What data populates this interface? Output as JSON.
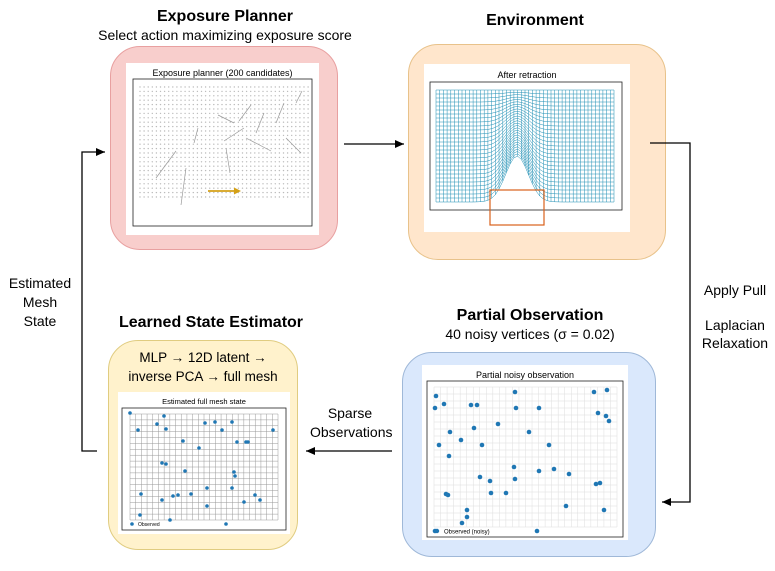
{
  "planner": {
    "title": "Exposure Planner",
    "subtitle": "Select action maximizing exposure score",
    "plot_title": "Exposure planner (200 candidates)"
  },
  "environment": {
    "title": "Environment",
    "plot_title": "After retraction"
  },
  "observation": {
    "title": "Partial Observation",
    "subtitle": "40 noisy vertices (σ = 0.02)",
    "plot_title": "Partial noisy observation",
    "legend": "Observed (noisy)"
  },
  "estimator": {
    "title": "Learned State Estimator",
    "line1": "MLP → 12D latent →",
    "line2": "inverse PCA → full mesh",
    "plot_title": "Estimated full mesh state",
    "legend": "Observed"
  },
  "edges": {
    "apply_pull": "Apply Pull",
    "laplacian": "Laplacian",
    "relaxation": "Relaxation",
    "sparse": "Sparse",
    "observations": "Observations",
    "estimated": "Estimated",
    "mesh": "Mesh",
    "state": "State"
  },
  "colors": {
    "planner_fill": "#f8cecc",
    "planner_border": "#e8a0a0",
    "env_fill": "#ffe6cc",
    "env_border": "#e8c28a",
    "obs_fill": "#dae8fc",
    "obs_border": "#9fb8d8",
    "est_fill": "#fff2cc",
    "est_border": "#e0cc80",
    "mesh": "#1f8fb4",
    "points": "#1f77b4",
    "action": "#d4a017",
    "gripper": "#d9601a"
  }
}
